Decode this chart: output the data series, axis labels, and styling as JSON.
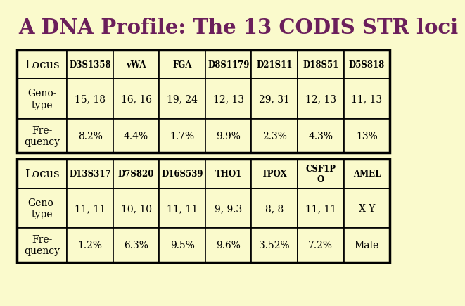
{
  "title": "A DNA Profile: The 13 CODIS STR loci",
  "title_color": "#6B1F5B",
  "bg_color": "#FAFACC",
  "table_border_color": "#000000",
  "cell_text_color": "#000000",
  "table1": {
    "headers": [
      "Locus",
      "D3S1358",
      "vWA",
      "FGA",
      "D8S1179",
      "D21S11",
      "D18S51",
      "D5S818"
    ],
    "genotype": [
      "Geno-\ntype",
      "15, 18",
      "16, 16",
      "19, 24",
      "12, 13",
      "29, 31",
      "12, 13",
      "11, 13"
    ],
    "frequency": [
      "Fre-\nquency",
      "8.2%",
      "4.4%",
      "1.7%",
      "9.9%",
      "2.3%",
      "4.3%",
      "13%"
    ]
  },
  "table2": {
    "headers": [
      "Locus",
      "D13S317",
      "D7S820",
      "D16S539",
      "THO1",
      "TPOX",
      "CSF1P\nO",
      "AMEL"
    ],
    "genotype": [
      "Geno-\ntype",
      "11, 11",
      "10, 10",
      "11, 11",
      "9, 9.3",
      "8, 8",
      "11, 11",
      "X Y"
    ],
    "frequency": [
      "Fre-\nquency",
      "1.2%",
      "6.3%",
      "9.5%",
      "9.6%",
      "3.52%",
      "7.2%",
      "Male"
    ]
  }
}
